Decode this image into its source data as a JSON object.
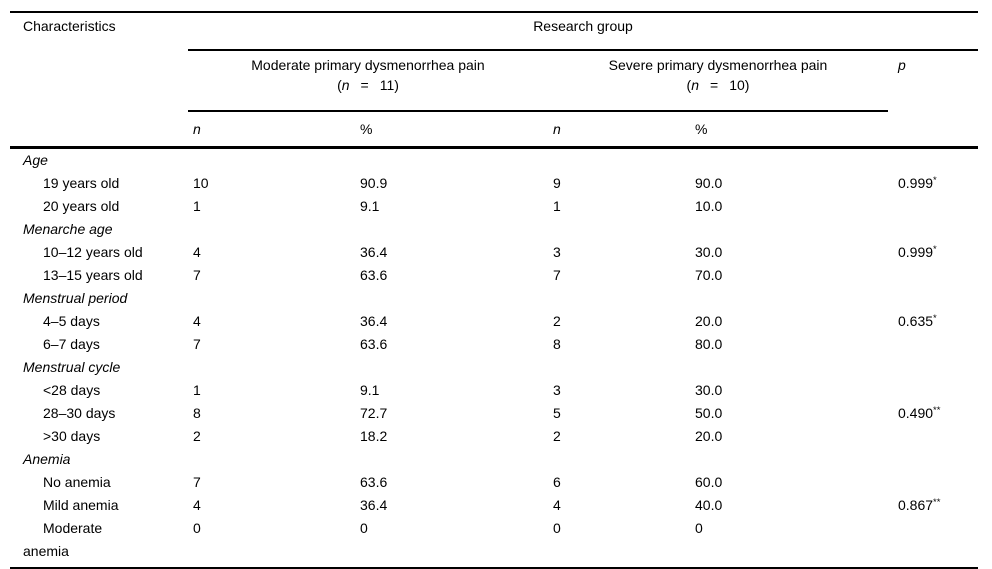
{
  "colors": {
    "background": "#ffffff",
    "text": "#000000",
    "rule": "#000000"
  },
  "table": {
    "header": {
      "characteristics": "Characteristics",
      "research_group": "Research group",
      "groups": [
        {
          "name": "Moderate primary dysmenorrhea pain",
          "count": {
            "open": "(",
            "symbol": "n",
            "eq": "=",
            "close": "11)"
          }
        },
        {
          "name": "Severe primary dysmenorrhea pain",
          "count": {
            "open": "(",
            "symbol": "n",
            "eq": "=",
            "close": "10)"
          }
        }
      ],
      "p_label": "p",
      "sub": {
        "n1": "n",
        "pct1": "%",
        "n2": "n",
        "pct2": "%"
      }
    },
    "rows": [
      {
        "type": "section",
        "label": "Age"
      },
      {
        "type": "item",
        "label": "19 years old",
        "n1": "10",
        "pct1": "90.9",
        "n2": "9",
        "pct2": "90.0",
        "p": "0.999",
        "p_mark": "*"
      },
      {
        "type": "item",
        "label": "20 years old",
        "n1": "1",
        "pct1": "9.1",
        "n2": "1",
        "pct2": "10.0"
      },
      {
        "type": "section",
        "label": "Menarche age"
      },
      {
        "type": "item",
        "label": "10–12 years old",
        "n1": "4",
        "pct1": "36.4",
        "n2": "3",
        "pct2": "30.0",
        "p": "0.999",
        "p_mark": "*"
      },
      {
        "type": "item",
        "label": "13–15 years old",
        "n1": "7",
        "pct1": "63.6",
        "n2": "7",
        "pct2": "70.0"
      },
      {
        "type": "section",
        "label": "Menstrual period"
      },
      {
        "type": "item",
        "label": "4–5 days",
        "n1": "4",
        "pct1": "36.4",
        "n2": "2",
        "pct2": "20.0",
        "p": "0.635",
        "p_mark": "*"
      },
      {
        "type": "item",
        "label": "6–7 days",
        "n1": "7",
        "pct1": "63.6",
        "n2": "8",
        "pct2": "80.0"
      },
      {
        "type": "section",
        "label": "Menstrual cycle"
      },
      {
        "type": "item",
        "label": "<28 days",
        "n1": "1",
        "pct1": "9.1",
        "n2": "3",
        "pct2": "30.0"
      },
      {
        "type": "item",
        "label": "28–30 days",
        "n1": "8",
        "pct1": "72.7",
        "n2": "5",
        "pct2": "50.0",
        "p": "0.490",
        "p_mark": "**"
      },
      {
        "type": "item",
        "label": ">30 days",
        "n1": "2",
        "pct1": "18.2",
        "n2": "2",
        "pct2": "20.0"
      },
      {
        "type": "section",
        "label": "Anemia"
      },
      {
        "type": "item",
        "label": "No anemia",
        "n1": "7",
        "pct1": "63.6",
        "n2": "6",
        "pct2": "60.0"
      },
      {
        "type": "item",
        "label": "Mild anemia",
        "n1": "4",
        "pct1": "36.4",
        "n2": "4",
        "pct2": "40.0",
        "p": "0.867",
        "p_mark": "**"
      },
      {
        "type": "item",
        "label": "Moderate anemia",
        "n1": "0",
        "pct1": "0",
        "n2": "0",
        "pct2": "0"
      }
    ]
  }
}
